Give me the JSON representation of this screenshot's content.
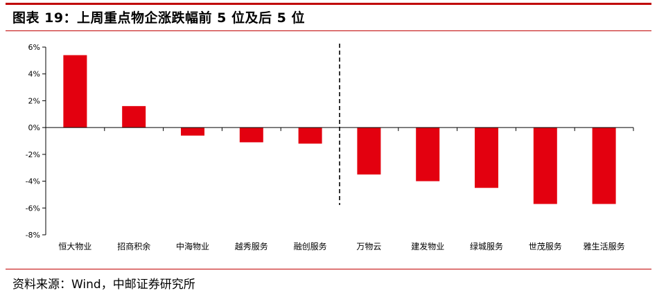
{
  "title": "图表 19：上周重点物企涨跌幅前 5 位及后 5 位",
  "source": "资料来源：Wind，中邮证券研究所",
  "colors": {
    "accent": "#c00000",
    "bar": "#e3000f",
    "axis": "#000000"
  },
  "chart_data": {
    "type": "bar",
    "title": "",
    "xlabel": "",
    "ylabel": "",
    "categories": [
      "恒大物业",
      "招商积余",
      "中海物业",
      "越秀服务",
      "融创服务",
      "万物云",
      "建发物业",
      "绿城服务",
      "世茂服务",
      "雅生活服务"
    ],
    "values": [
      5.4,
      1.6,
      -0.6,
      -1.1,
      -1.2,
      -3.5,
      -4.0,
      -4.5,
      -5.7,
      -5.7
    ],
    "ylim": [
      -8,
      6
    ],
    "yticks": [
      6,
      4,
      2,
      0,
      -2,
      -4,
      -6,
      -8
    ],
    "ytick_labels": [
      "6%",
      "4%",
      "2%",
      "0%",
      "-2%",
      "-4%",
      "-6%",
      "-8%"
    ],
    "divider_after_category": 5,
    "grid": false,
    "legend": "none"
  }
}
